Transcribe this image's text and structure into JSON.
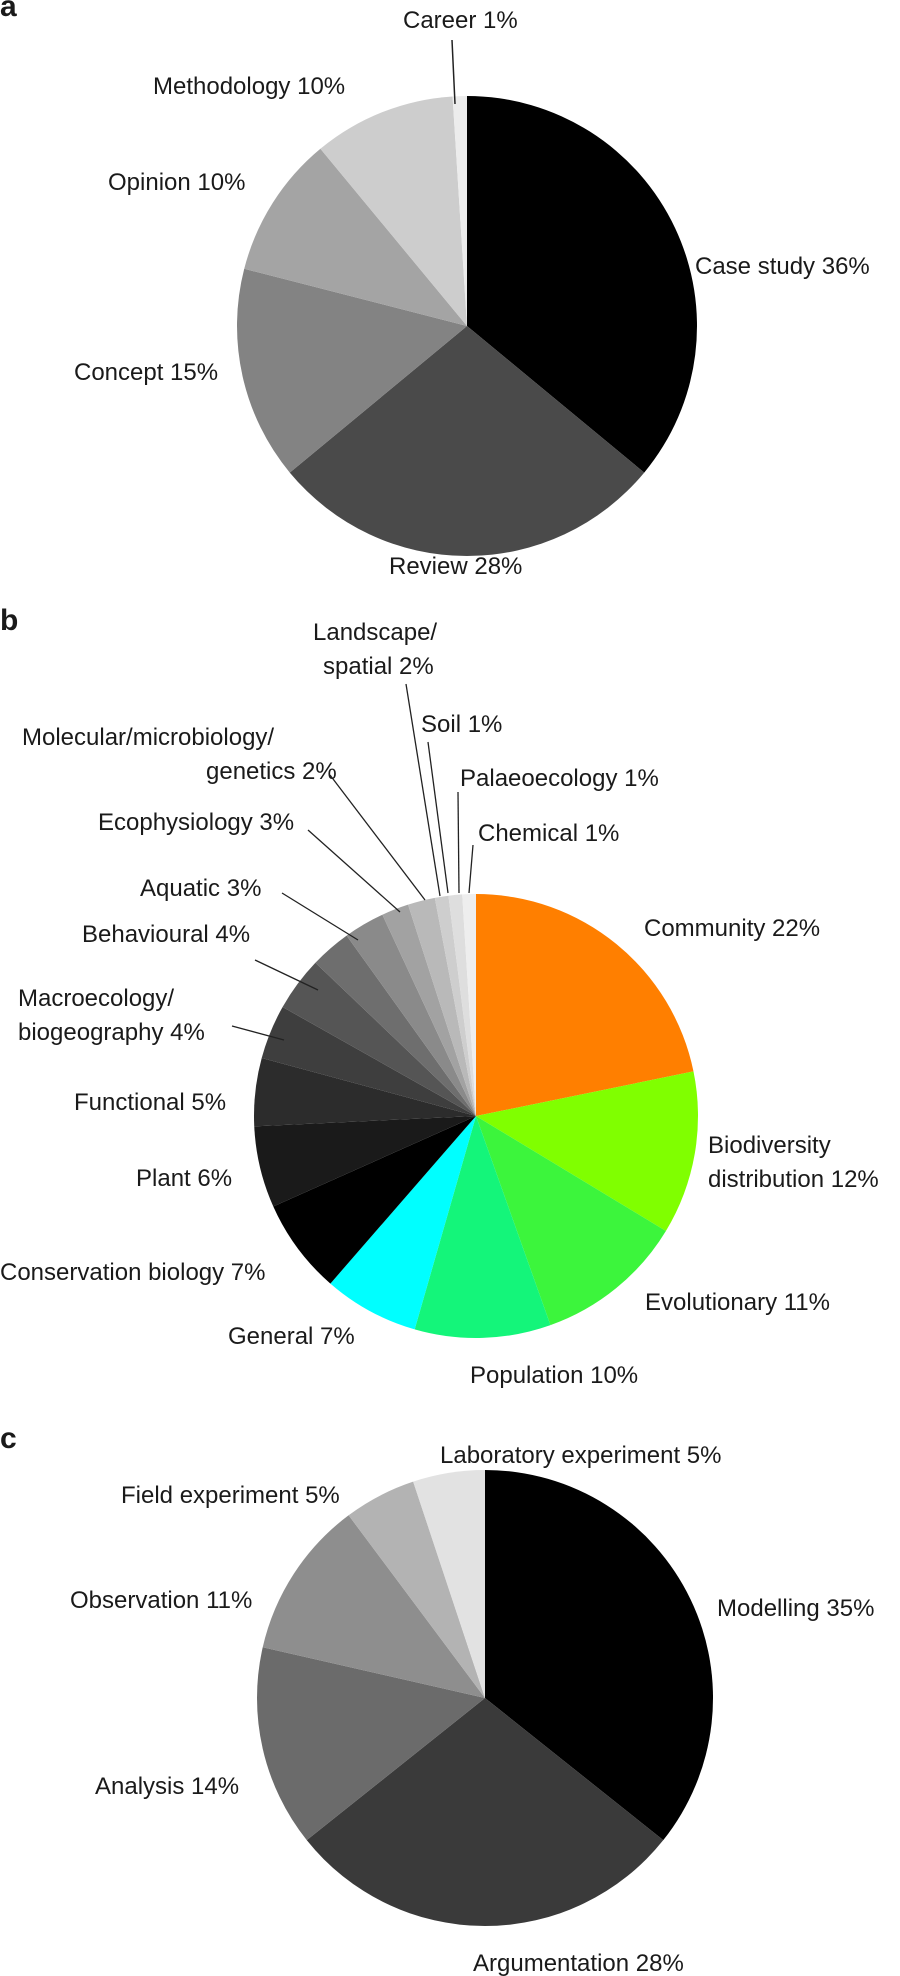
{
  "chart_data": [
    {
      "type": "pie",
      "panel": "a",
      "slices": [
        {
          "label": "Case study 36%",
          "value": 36,
          "color": "#000000"
        },
        {
          "label": "Review 28%",
          "value": 28,
          "color": "#4a4a4a"
        },
        {
          "label": "Concept 15%",
          "value": 15,
          "color": "#838383"
        },
        {
          "label": "Opinion 10%",
          "value": 10,
          "color": "#a4a4a4"
        },
        {
          "label": "Methodology 10%",
          "value": 10,
          "color": "#cdcdcd"
        },
        {
          "label": "Career 1%",
          "value": 1,
          "color": "#ececec"
        }
      ]
    },
    {
      "type": "pie",
      "panel": "b",
      "slices": [
        {
          "label": "Community 22%",
          "value": 22,
          "color": "#ff7f00"
        },
        {
          "label": "Biodiversity distribution 12%",
          "value": 12,
          "color": "#80ff00"
        },
        {
          "label": "Evolutionary 11%",
          "value": 11,
          "color": "#3cf53c"
        },
        {
          "label": "Population 10%",
          "value": 10,
          "color": "#14f57a"
        },
        {
          "label": "General 7%",
          "value": 7,
          "color": "#00ffff"
        },
        {
          "label": "Conservation biology 7%",
          "value": 7,
          "color": "#000000"
        },
        {
          "label": "Plant 6%",
          "value": 6,
          "color": "#1a1a1a"
        },
        {
          "label": "Functional 5%",
          "value": 5,
          "color": "#2c2c2c"
        },
        {
          "label": "Macroecology/ biogeography 4%",
          "value": 4,
          "color": "#3e3e3e"
        },
        {
          "label": "Behavioural 4%",
          "value": 4,
          "color": "#555555"
        },
        {
          "label": "Aquatic 3%",
          "value": 3,
          "color": "#6e6e6e"
        },
        {
          "label": "Ecophysiology 3%",
          "value": 3,
          "color": "#8a8a8a"
        },
        {
          "label": "Molecular/microbiology/ genetics 2%",
          "value": 2,
          "color": "#a2a2a2"
        },
        {
          "label": "Landscape/ spatial 2%",
          "value": 2,
          "color": "#b9b9b9"
        },
        {
          "label": "Soil 1%",
          "value": 1,
          "color": "#cecece"
        },
        {
          "label": "Palaeoecology 1%",
          "value": 1,
          "color": "#dedede"
        },
        {
          "label": "Chemical 1%",
          "value": 1,
          "color": "#eeeeee"
        }
      ]
    },
    {
      "type": "pie",
      "panel": "c",
      "slices": [
        {
          "label": "Modelling 35%",
          "value": 35,
          "color": "#000000"
        },
        {
          "label": "Argumentation 28%",
          "value": 28,
          "color": "#3a3a3a"
        },
        {
          "label": "Analysis 14%",
          "value": 14,
          "color": "#6b6b6b"
        },
        {
          "label": "Observation 11%",
          "value": 11,
          "color": "#8e8e8e"
        },
        {
          "label": "Field experiment 5%",
          "value": 5,
          "color": "#b3b3b3"
        },
        {
          "label": "Laboratory experiment 5%",
          "value": 5,
          "color": "#e2e2e2"
        }
      ]
    }
  ],
  "panels": {
    "a": {
      "letter": "a",
      "labels": [
        "Career 1%",
        "Methodology 10%",
        "Opinion 10%",
        "Case study 36%",
        "Concept 15%",
        "Review 28%"
      ]
    },
    "b": {
      "letter": "b",
      "labels": [
        [
          "Landscape/",
          "spatial 2%"
        ],
        [
          "Soil 1%"
        ],
        [
          "Molecular/microbiology/",
          "genetics 2%"
        ],
        [
          "Palaeoecology 1%"
        ],
        [
          "Ecophysiology 3%"
        ],
        [
          "Chemical 1%"
        ],
        [
          "Aquatic 3%"
        ],
        [
          "Community 22%"
        ],
        [
          "Behavioural 4%"
        ],
        [
          "Macroecology/",
          "biogeography 4%"
        ],
        [
          "Functional 5%"
        ],
        [
          "Biodiversity",
          "distribution 12%"
        ],
        [
          "Plant 6%"
        ],
        [
          "Evolutionary 11%"
        ],
        [
          "Conservation biology 7%"
        ],
        [
          "General 7%"
        ],
        [
          "Population 10%"
        ]
      ]
    },
    "c": {
      "letter": "c",
      "labels": [
        "Laboratory experiment 5%",
        "Field experiment 5%",
        "Observation 11%",
        "Modelling 35%",
        "Analysis 14%",
        "Argumentation 28%"
      ]
    }
  }
}
